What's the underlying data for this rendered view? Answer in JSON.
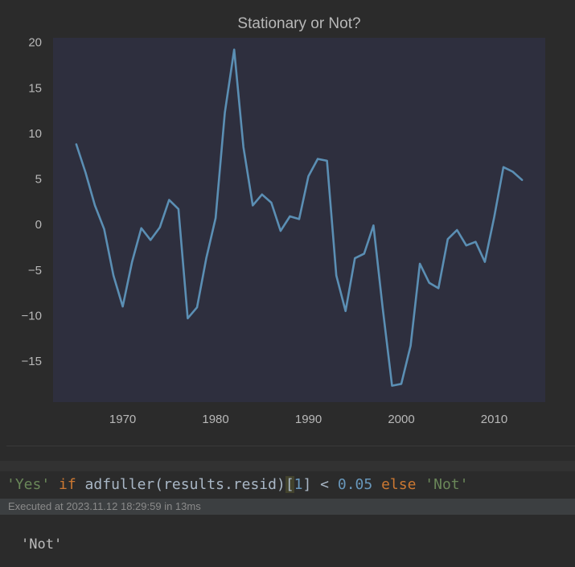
{
  "chart_data": {
    "type": "line",
    "title": "Stationary or Not?",
    "xlabel": "",
    "ylabel": "",
    "xlim": [
      1962.5,
      2015.5
    ],
    "ylim": [
      -19.5,
      20.5
    ],
    "x_ticks": [
      1970,
      1980,
      1990,
      2000,
      2010
    ],
    "y_ticks": [
      20,
      15,
      10,
      5,
      0,
      -5,
      -10,
      -15
    ],
    "grid": false,
    "line_color": "#5b8fb4",
    "plot_bg": "#2e2f3e",
    "series": [
      {
        "x": [
          1965,
          1966,
          1967,
          1968,
          1969,
          1970,
          1971,
          1972,
          1973,
          1974,
          1975,
          1976,
          1977,
          1978,
          1979,
          1980,
          1981,
          1982,
          1983,
          1984,
          1985,
          1986,
          1987,
          1988,
          1989,
          1990,
          1991,
          1992,
          1993,
          1994,
          1995,
          1996,
          1997,
          1998,
          1999,
          2000,
          2001,
          2002,
          2003,
          2004,
          2005,
          2006,
          2007,
          2008,
          2009,
          2010,
          2011,
          2012,
          2013
        ],
        "values": [
          8.8,
          5.7,
          2.1,
          -0.5,
          -5.6,
          -9.0,
          -4.1,
          -0.4,
          -1.7,
          -0.3,
          2.7,
          1.7,
          -10.3,
          -9.1,
          -3.7,
          0.7,
          12.3,
          19.2,
          8.5,
          2.1,
          3.3,
          2.4,
          -0.7,
          0.9,
          0.6,
          5.3,
          7.2,
          7.0,
          -5.6,
          -9.5,
          -3.7,
          -3.2,
          -0.1,
          -9.2,
          -17.7,
          -17.5,
          -13.3,
          -4.3,
          -6.4,
          -7.0,
          -1.6,
          -0.6,
          -2.3,
          -1.9,
          -4.1,
          0.8,
          6.3,
          5.8,
          4.9
        ]
      }
    ]
  },
  "code": {
    "tokens": [
      {
        "text": "'Yes'",
        "cls": "tok-str"
      },
      {
        "text": " ",
        "cls": "tok-plain"
      },
      {
        "text": "if",
        "cls": "tok-kw"
      },
      {
        "text": " adfuller(results.resid)",
        "cls": "tok-plain"
      },
      {
        "text": "[",
        "cls": "tok-bracket-hl"
      },
      {
        "text": "1",
        "cls": "tok-num"
      },
      {
        "text": "]",
        "cls": "tok-plain"
      },
      {
        "text": " < ",
        "cls": "tok-plain"
      },
      {
        "text": "0.05",
        "cls": "tok-num"
      },
      {
        "text": " ",
        "cls": "tok-plain"
      },
      {
        "text": "else",
        "cls": "tok-kw"
      },
      {
        "text": " ",
        "cls": "tok-plain"
      },
      {
        "text": "'Not'",
        "cls": "tok-str"
      }
    ]
  },
  "exec_status": "Executed at 2023.11.12 18:29:59 in 13ms",
  "output": "'Not'"
}
